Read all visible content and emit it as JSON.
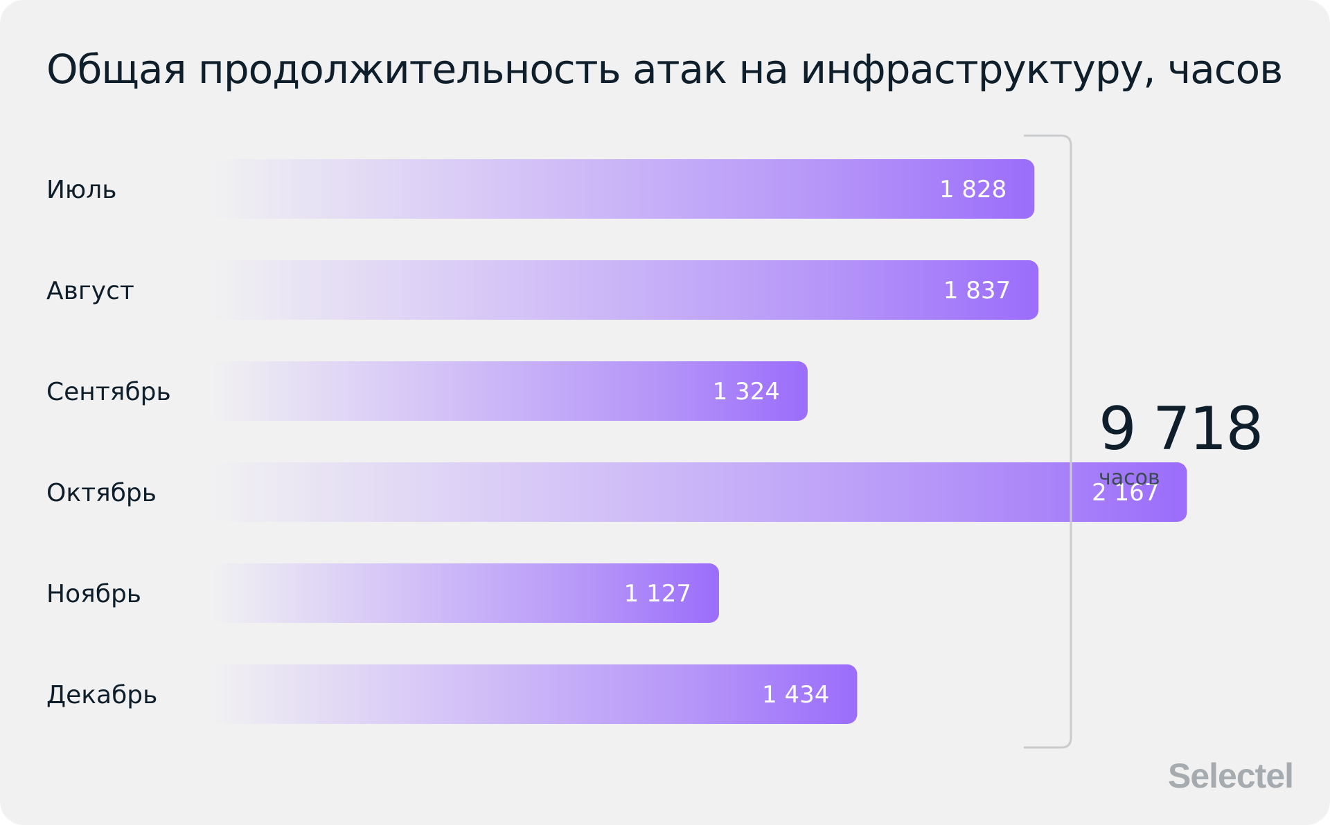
{
  "chart_data": {
    "type": "bar",
    "orientation": "horizontal",
    "title": "Общая продолжительность атак на инфраструктуру, часов",
    "categories": [
      "Июль",
      "Август",
      "Сентябрь",
      "Октябрь",
      "Ноябрь",
      "Декабрь"
    ],
    "values": [
      1828,
      1837,
      1324,
      2167,
      1127,
      1434
    ],
    "value_labels": [
      "1 828",
      "1 837",
      "1 324",
      "2 167",
      "1 127",
      "1 434"
    ],
    "total": {
      "value": "9 718",
      "unit": "часов"
    },
    "grid": false,
    "legend": "none",
    "colors": {
      "bar_start": "#f1f1f2",
      "bar_mid": "#c7b2f7",
      "bar_end": "#9b6dfb",
      "text": "#0e1f2b",
      "bracket": "#c9cbcd"
    }
  },
  "brand": {
    "logo_text": "Selectel"
  }
}
